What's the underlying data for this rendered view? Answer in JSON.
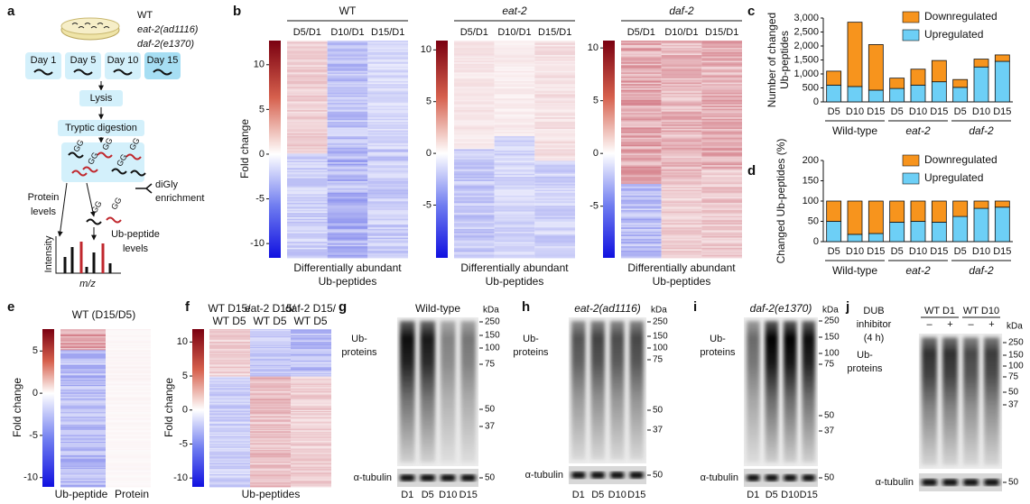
{
  "panel_a": {
    "label": "a",
    "strains": [
      "WT",
      "eat-2(ad1116)",
      "daf-2(e1370)"
    ],
    "days": [
      "Day 1",
      "Day 5",
      "Day 10",
      "Day 15"
    ],
    "steps": [
      "Lysis",
      "Tryptic digestion"
    ],
    "gg": "GG",
    "enrichment": [
      "diGly",
      "enrichment"
    ],
    "protein_levels": [
      "Protein",
      "levels"
    ],
    "ubpeptide_levels": [
      "Ub-peptide",
      "levels"
    ],
    "ms_ylabel": "Intensity",
    "ms_xlabel": "m/z"
  },
  "panel_b": {
    "label": "b",
    "ylabel": "Fold change",
    "xlabel": [
      "Differentially abundant",
      "Ub-peptides"
    ],
    "heatmaps": [
      {
        "title": "WT",
        "columns": [
          "D5/D1",
          "D10/D1",
          "D15/D1"
        ],
        "colorbar_lim": [
          -11.6,
          12.7
        ],
        "colorbar_ticks": [
          10,
          5,
          0,
          -5,
          -10
        ]
      },
      {
        "title": "eat-2",
        "columns": [
          "D5/D1",
          "D10/D1",
          "D15/D1"
        ],
        "colorbar_lim": [
          -10.1,
          10.9
        ],
        "colorbar_ticks": [
          10,
          5,
          0,
          -5
        ]
      },
      {
        "title": "daf-2",
        "columns": [
          "D5/D1",
          "D10/D1",
          "D15/D1"
        ],
        "colorbar_lim": [
          -9.9,
          10.7
        ],
        "colorbar_ticks": [
          10,
          5,
          0,
          -5
        ]
      }
    ]
  },
  "chart_data": [
    {
      "type": "stacked_bar",
      "label": "c",
      "ylabel": [
        "Number of changed",
        "Ub-peptides"
      ],
      "categories": [
        "D5",
        "D10",
        "D15",
        "D5",
        "D10",
        "D15",
        "D5",
        "D10",
        "D15"
      ],
      "groups": [
        "Wild-type",
        "eat-2",
        "daf-2"
      ],
      "series": [
        {
          "name": "Downregulated",
          "color": "#f7941d",
          "values": [
            500,
            2300,
            1630,
            370,
            570,
            760,
            280,
            280,
            230
          ]
        },
        {
          "name": "Upregulated",
          "color": "#6dcff6",
          "values": [
            600,
            550,
            420,
            480,
            600,
            720,
            520,
            1250,
            1450
          ]
        }
      ],
      "ylim": [
        0,
        3000
      ],
      "yticks": [
        0,
        500,
        {
          "value": 1000,
          "label": "1,000"
        },
        {
          "value": 1500,
          "label": "1,500"
        },
        {
          "value": 2000,
          "label": "2,000"
        },
        {
          "value": 2500,
          "label": "2,500"
        },
        {
          "value": 3000,
          "label": "3,000"
        }
      ]
    },
    {
      "type": "stacked_bar",
      "label": "d",
      "ylabel": [
        "Changed Ub-peptides (%)"
      ],
      "categories": [
        "D5",
        "D10",
        "D15",
        "D5",
        "D10",
        "D15",
        "D5",
        "D10",
        "D15"
      ],
      "groups": [
        "Wild-type",
        "eat-2",
        "daf-2"
      ],
      "series": [
        {
          "name": "Downregulated",
          "color": "#f7941d",
          "values": [
            50,
            82,
            80,
            52,
            50,
            52,
            38,
            18,
            15
          ]
        },
        {
          "name": "Upregulated",
          "color": "#6dcff6",
          "values": [
            50,
            18,
            20,
            48,
            50,
            48,
            62,
            82,
            85
          ]
        }
      ],
      "ylim": [
        0,
        200
      ],
      "yticks": [
        0,
        50,
        100,
        150,
        200
      ]
    }
  ],
  "panel_e": {
    "label": "e",
    "title": "WT (D15/D5)",
    "columns": [
      "Ub-peptide",
      "Protein"
    ],
    "ylabel": "Fold change",
    "colorbar_lim": [
      -11.1,
      7.6
    ],
    "colorbar_ticks": [
      5,
      0,
      -5,
      -10
    ]
  },
  "panel_f": {
    "label": "f",
    "columns": [
      [
        "WT D15/",
        "WT D5"
      ],
      [
        "eat-2 D15/",
        "WT D5"
      ],
      [
        "daf-2 D15/",
        "WT D5"
      ]
    ],
    "xlabel": "Ub-peptides",
    "ylabel": "Fold change",
    "colorbar_lim": [
      -11.3,
      11.9
    ],
    "colorbar_ticks": [
      10,
      5,
      0,
      -5,
      -10
    ]
  },
  "blots": [
    {
      "label": "g",
      "title": "Wild-type",
      "unit": "kDa",
      "markers": [
        250,
        150,
        100,
        75,
        50,
        37
      ],
      "band_label": [
        "Ub-",
        "proteins"
      ],
      "loading": "α-tubulin",
      "loading_marker": 50,
      "lanes": [
        "D1",
        "D5",
        "D10",
        "D15"
      ]
    },
    {
      "label": "h",
      "title": "eat-2(ad1116)",
      "unit": "kDa",
      "markers": [
        250,
        150,
        100,
        75,
        50,
        37
      ],
      "band_label": [
        "Ub-",
        "proteins"
      ],
      "loading": "α-tubulin",
      "loading_marker": 50,
      "lanes": [
        "D1",
        "D5",
        "D10",
        "D15"
      ]
    },
    {
      "label": "i",
      "title": "daf-2(e1370)",
      "unit": "kDa",
      "markers": [
        250,
        150,
        100,
        75,
        50,
        37
      ],
      "band_label": [
        "Ub-",
        "proteins"
      ],
      "loading": "α-tubulin",
      "loading_marker": 50,
      "lanes": [
        "D1",
        "D5",
        "D10",
        "D15"
      ]
    },
    {
      "label": "j",
      "treatment": [
        "DUB",
        "inhibitor",
        "(4 h)"
      ],
      "groups": [
        "WT D1",
        "WT D10"
      ],
      "lanes": [
        "–",
        "+",
        "–",
        "+"
      ],
      "unit": "kDa",
      "markers": [
        250,
        150,
        100,
        75,
        50,
        37
      ],
      "band_label": [
        "Ub-",
        "proteins"
      ],
      "loading": "α-tubulin",
      "loading_marker": 50
    }
  ]
}
